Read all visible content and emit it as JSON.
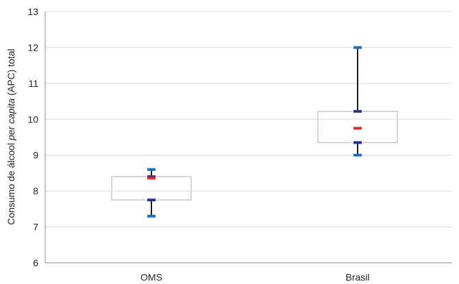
{
  "chart_data": {
    "type": "boxplot",
    "title": "",
    "xlabel": "",
    "ylabel": {
      "part1": "Consumo de álcool ",
      "italic": "per capita",
      "part2": " (APC) total"
    },
    "ylim": [
      6,
      13
    ],
    "yticks": [
      "6",
      "7",
      "8",
      "9",
      "10",
      "11",
      "12",
      "13"
    ],
    "grid": true,
    "legend": "none",
    "categories": [
      "OMS",
      "Brasil"
    ],
    "boxes": [
      {
        "category": "OMS",
        "min": 7.3,
        "q1": 7.75,
        "median": 8.36,
        "q3": 8.4,
        "max": 8.6,
        "mean": 8.36
      },
      {
        "category": "Brasil",
        "min": 9.0,
        "q1": 9.35,
        "median": 9.75,
        "q3": 10.22,
        "max": 12.0,
        "mean": 9.75
      }
    ],
    "colors": {
      "box_outline": "#c8c8c8",
      "whisker": "#1a1a1a",
      "extreme_cap": "#1f6fbf",
      "quartile_cap": "#2b2f8f",
      "center_mark": "#e8272b",
      "grid": "#d9d9d9",
      "axis": "#8c8c8c"
    }
  }
}
